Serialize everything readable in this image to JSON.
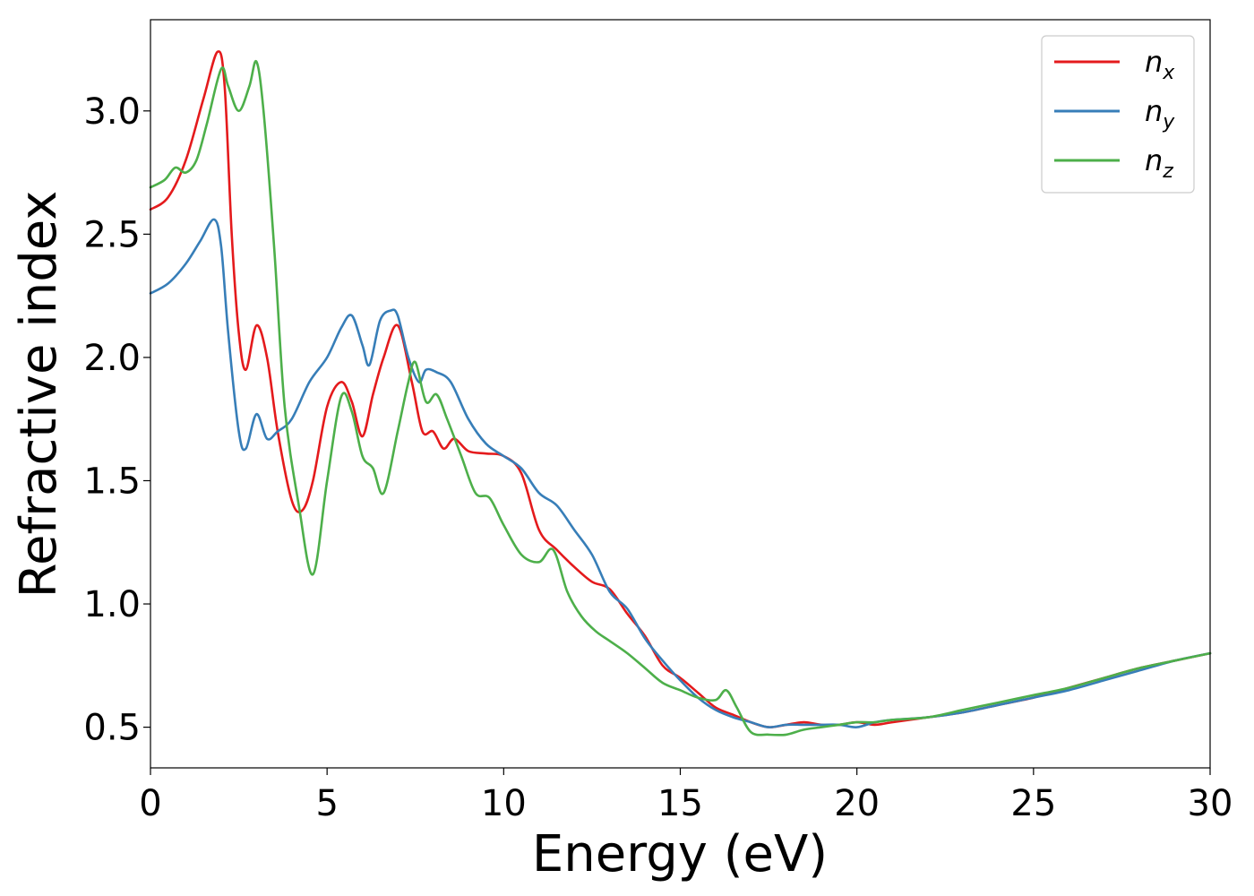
{
  "chart_data": {
    "type": "line",
    "xlabel": "Energy (eV)",
    "ylabel": "Refractive index",
    "xlim": [
      0,
      30
    ],
    "ylim": [
      0.335,
      3.37
    ],
    "xticks": [
      0,
      5,
      10,
      15,
      20,
      25,
      30
    ],
    "xtick_labels": [
      "0",
      "5",
      "10",
      "15",
      "20",
      "25",
      "30"
    ],
    "yticks": [
      0.5,
      1.0,
      1.5,
      2.0,
      2.5,
      3.0
    ],
    "ytick_labels": [
      "0.5",
      "1.0",
      "1.5",
      "2.0",
      "2.5",
      "3.0"
    ],
    "grid": false,
    "legend_position": "top-right",
    "series": [
      {
        "name_base": "n",
        "name_sub": "x",
        "color": "#e41a1c",
        "x": [
          0,
          0.5,
          1.0,
          1.5,
          1.9,
          2.1,
          2.3,
          2.5,
          2.7,
          3.0,
          3.3,
          3.6,
          4.0,
          4.3,
          4.6,
          5.0,
          5.4,
          5.7,
          6.0,
          6.3,
          6.6,
          7.0,
          7.4,
          7.7,
          8.0,
          8.3,
          8.6,
          9.0,
          9.5,
          10.0,
          10.5,
          11.0,
          11.5,
          12.0,
          12.5,
          13.0,
          13.5,
          14.0,
          14.5,
          15.0,
          15.5,
          16.0,
          16.5,
          17.0,
          17.5,
          18.0,
          18.5,
          19.0,
          19.5,
          20.0,
          20.5,
          21.0,
          22.0,
          23.0,
          24.0,
          25.0,
          26.0,
          27.0,
          28.0,
          29.0,
          30.0
        ],
        "y": [
          2.6,
          2.65,
          2.8,
          3.05,
          3.24,
          3.1,
          2.5,
          2.1,
          1.95,
          2.13,
          2.0,
          1.7,
          1.42,
          1.38,
          1.5,
          1.8,
          1.9,
          1.82,
          1.68,
          1.85,
          2.0,
          2.13,
          1.9,
          1.7,
          1.7,
          1.63,
          1.67,
          1.62,
          1.61,
          1.6,
          1.53,
          1.3,
          1.22,
          1.15,
          1.09,
          1.06,
          0.96,
          0.87,
          0.75,
          0.7,
          0.64,
          0.58,
          0.55,
          0.52,
          0.5,
          0.51,
          0.52,
          0.51,
          0.51,
          0.52,
          0.51,
          0.52,
          0.54,
          0.56,
          0.59,
          0.62,
          0.66,
          0.7,
          0.74,
          0.77,
          0.8
        ]
      },
      {
        "name_base": "n",
        "name_sub": "y",
        "color": "#377eb8",
        "x": [
          0,
          0.5,
          1.0,
          1.4,
          1.8,
          2.0,
          2.2,
          2.5,
          2.7,
          3.0,
          3.3,
          3.6,
          4.0,
          4.5,
          5.0,
          5.4,
          5.7,
          6.0,
          6.2,
          6.5,
          6.8,
          7.0,
          7.3,
          7.6,
          7.8,
          8.1,
          8.5,
          9.0,
          9.5,
          10.0,
          10.5,
          11.0,
          11.5,
          12.0,
          12.5,
          13.0,
          13.5,
          14.0,
          14.5,
          15.0,
          15.5,
          16.0,
          16.5,
          17.0,
          17.5,
          18.0,
          18.5,
          19.0,
          19.5,
          20.0,
          20.5,
          21.0,
          22.0,
          23.0,
          24.0,
          25.0,
          26.0,
          27.0,
          28.0,
          29.0,
          30.0
        ],
        "y": [
          2.26,
          2.3,
          2.38,
          2.47,
          2.56,
          2.45,
          2.1,
          1.7,
          1.63,
          1.77,
          1.67,
          1.7,
          1.75,
          1.9,
          2.0,
          2.12,
          2.17,
          2.05,
          1.97,
          2.15,
          2.19,
          2.17,
          2.0,
          1.9,
          1.95,
          1.94,
          1.9,
          1.75,
          1.65,
          1.6,
          1.55,
          1.45,
          1.4,
          1.3,
          1.2,
          1.05,
          0.98,
          0.86,
          0.77,
          0.69,
          0.62,
          0.57,
          0.54,
          0.52,
          0.5,
          0.51,
          0.51,
          0.51,
          0.51,
          0.5,
          0.52,
          0.53,
          0.54,
          0.56,
          0.59,
          0.62,
          0.65,
          0.69,
          0.73,
          0.77,
          0.8
        ]
      },
      {
        "name_base": "n",
        "name_sub": "z",
        "color": "#4daf4a",
        "x": [
          0,
          0.4,
          0.7,
          1.0,
          1.3,
          1.6,
          2.0,
          2.2,
          2.5,
          2.8,
          3.0,
          3.2,
          3.5,
          3.8,
          4.2,
          4.6,
          5.0,
          5.4,
          5.7,
          6.0,
          6.3,
          6.6,
          7.0,
          7.3,
          7.5,
          7.8,
          8.1,
          8.4,
          8.8,
          9.2,
          9.6,
          10.0,
          10.5,
          11.0,
          11.4,
          11.8,
          12.2,
          12.6,
          13.0,
          13.5,
          14.0,
          14.5,
          15.0,
          15.5,
          16.0,
          16.3,
          16.6,
          17.0,
          17.5,
          18.0,
          18.5,
          19.0,
          19.5,
          20.0,
          20.5,
          21.0,
          22.0,
          23.0,
          24.0,
          25.0,
          26.0,
          27.0,
          28.0,
          29.0,
          30.0
        ],
        "y": [
          2.69,
          2.72,
          2.77,
          2.75,
          2.8,
          2.95,
          3.17,
          3.1,
          3.0,
          3.1,
          3.2,
          3.0,
          2.45,
          1.8,
          1.4,
          1.12,
          1.5,
          1.84,
          1.78,
          1.6,
          1.55,
          1.45,
          1.7,
          1.9,
          1.98,
          1.82,
          1.85,
          1.75,
          1.6,
          1.45,
          1.43,
          1.32,
          1.2,
          1.17,
          1.22,
          1.05,
          0.95,
          0.89,
          0.85,
          0.8,
          0.74,
          0.68,
          0.65,
          0.62,
          0.61,
          0.65,
          0.58,
          0.48,
          0.47,
          0.47,
          0.49,
          0.5,
          0.51,
          0.52,
          0.52,
          0.53,
          0.54,
          0.57,
          0.6,
          0.63,
          0.66,
          0.7,
          0.74,
          0.77,
          0.8
        ]
      }
    ]
  }
}
